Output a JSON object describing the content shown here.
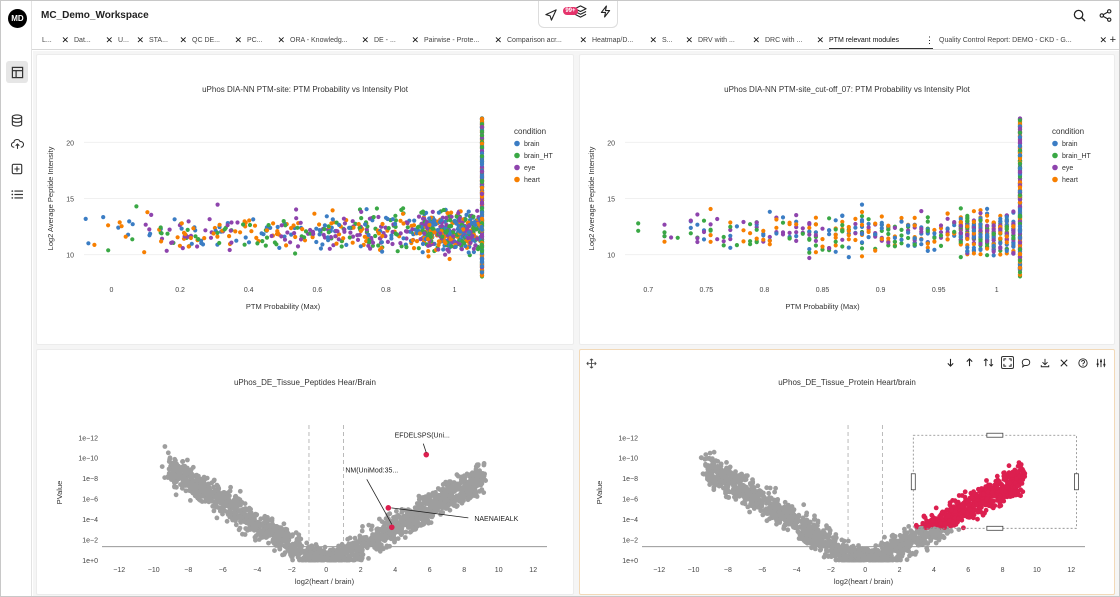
{
  "workspace": {
    "title": "MC_Demo_Workspace",
    "logo_text": "MD"
  },
  "header": {
    "notification_count": "99+"
  },
  "tabs": [
    {
      "label": "L...",
      "x": 10
    },
    {
      "label": "Dat...",
      "x": 42
    },
    {
      "label": "U...",
      "x": 86
    },
    {
      "label": "STA...",
      "x": 117
    },
    {
      "label": "QC DE...",
      "x": 160
    },
    {
      "label": "PC...",
      "x": 215
    },
    {
      "label": "ORA - Knowledg...",
      "x": 258
    },
    {
      "label": "DE - ...",
      "x": 342
    },
    {
      "label": "Pairwise - Prote...",
      "x": 392
    },
    {
      "label": "Comparison acr...",
      "x": 475
    },
    {
      "label": "Heatmap/D...",
      "x": 560
    },
    {
      "label": "S...",
      "x": 630
    },
    {
      "label": "DRV with ...",
      "x": 666
    },
    {
      "label": "DRC with ...",
      "x": 733
    },
    {
      "label": "PTM relevant modules",
      "x": 797,
      "active": true
    },
    {
      "label": "Quality Control Report: DEMO - CKD - G...",
      "x": 907
    }
  ],
  "plots": {
    "scatter1": {
      "title": "uPhos DIA-NN PTM-site: PTM Probability vs Intensity Plot",
      "xlabel": "PTM Probability (Max)",
      "ylabel": "Log2 Average Peptide Intensity",
      "legend_title": "condition",
      "legend": [
        "brain",
        "brain_HT",
        "eye",
        "heart"
      ],
      "xticks": [
        "0",
        "0.2",
        "0.4",
        "0.6",
        "0.8",
        "1"
      ],
      "yticks": [
        "10",
        "15",
        "20"
      ]
    },
    "scatter2": {
      "title": "uPhos DIA-NN PTM-site_cut-off_07: PTM Probability vs Intensity Plot",
      "xlabel": "PTM Probability (Max)",
      "ylabel": "Log2 Average Peptide Intensity",
      "legend_title": "condition",
      "legend": [
        "brain",
        "brain_HT",
        "eye",
        "heart"
      ],
      "xticks": [
        "0.7",
        "0.75",
        "0.8",
        "0.85",
        "0.9",
        "0.95",
        "1"
      ],
      "yticks": [
        "10",
        "15",
        "20"
      ]
    },
    "volcano1": {
      "title": "uPhos_DE_Tissue_Peptides Hear/Brain",
      "xlabel": "log2(heart / brain)",
      "ylabel": "PValue",
      "xticks": [
        "−12",
        "−10",
        "−8",
        "−6",
        "−4",
        "−2",
        "0",
        "2",
        "4",
        "6",
        "8",
        "10",
        "12"
      ],
      "yticks": [
        "1e+0",
        "1e−2",
        "1e−4",
        "1e−6",
        "1e−8",
        "1e−10",
        "1e−12"
      ],
      "annotations": [
        "EFDELSPS(Uni...",
        "NM(UniMod:35...",
        "NAENAIEALK"
      ]
    },
    "volcano2": {
      "title": "uPhos_DE_Tissue_Protein Heart/brain",
      "xlabel": "log2(heart / brain)",
      "ylabel": "PValue",
      "xticks": [
        "−12",
        "−10",
        "−8",
        "−6",
        "−4",
        "−2",
        "0",
        "2",
        "4",
        "6",
        "8",
        "10",
        "12"
      ],
      "yticks": [
        "1e+0",
        "1e−2",
        "1e−4",
        "1e−6",
        "1e−8",
        "1e−10",
        "1e−12"
      ]
    }
  },
  "colors": {
    "brain": "#3b7dc4",
    "brain_HT": "#3aa845",
    "eye": "#8e44ad",
    "heart": "#f77f00",
    "grey": "#9e9e9e",
    "selected": "#dc1f4f"
  },
  "icons": [
    "workspace-layout-icon",
    "database-icon",
    "upload-cloud-icon",
    "add-box-icon",
    "list-icon",
    "navigation-icon",
    "layers-icon",
    "lightning-icon",
    "search-icon",
    "share-icon",
    "move-icon"
  ]
}
